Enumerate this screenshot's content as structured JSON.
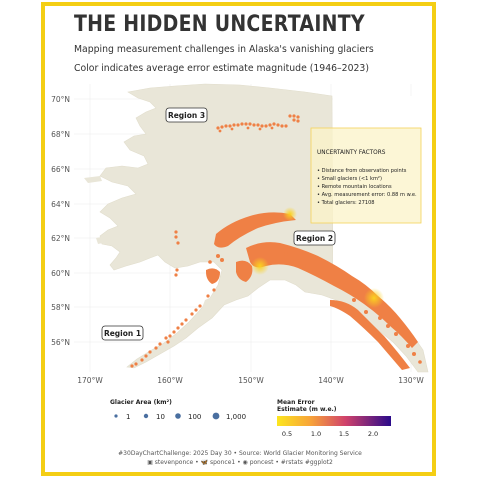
{
  "title": "THE HIDDEN UNCERTAINTY",
  "subtitle_line1": "Mapping measurement challenges in Alaska's vanishing glaciers",
  "subtitle_line2": "Color indicates average error estimate magnitude (1946–2023)",
  "lat_labels": [
    "70°N",
    "68°N",
    "66°N",
    "64°N",
    "62°N",
    "60°N",
    "58°N",
    "56°N"
  ],
  "lon_labels": [
    "170°W",
    "160°W",
    "150°W",
    "140°W",
    "130°W"
  ],
  "regions": [
    "Region 3",
    "Region 2",
    "Region 1"
  ],
  "info_box": {
    "heading": "UNCERTAINTY FACTORS",
    "items": [
      "• Distance from observation points",
      "• Small glaciers (<1 km²)",
      "• Remote mountain locations",
      "• Avg. measurement error: 0.88 m w.e.",
      "• Total glaciers: 27108"
    ]
  },
  "size_legend": {
    "title": "Glacier Area (km²)",
    "labels": [
      "1",
      "10",
      "100",
      "1,000"
    ]
  },
  "color_legend": {
    "title_line1": "Mean Error",
    "title_line2": "Estimate (m w.e.)",
    "labels": [
      "0.5",
      "1.0",
      "1.5",
      "2.0"
    ]
  },
  "caption_line1": "#30DayChartChallenge: 2025 Day 30 • Source: World Glacier Monitoring Service",
  "caption_line2": "▣ stevenponce • 🦋 sponce1 • ◉ poncest • #rstats #ggplot2",
  "colors": {
    "frame": "#f4ce14",
    "land": "#e9e6d8",
    "glacier": "#ef8045",
    "hot": "#f9c21c"
  }
}
